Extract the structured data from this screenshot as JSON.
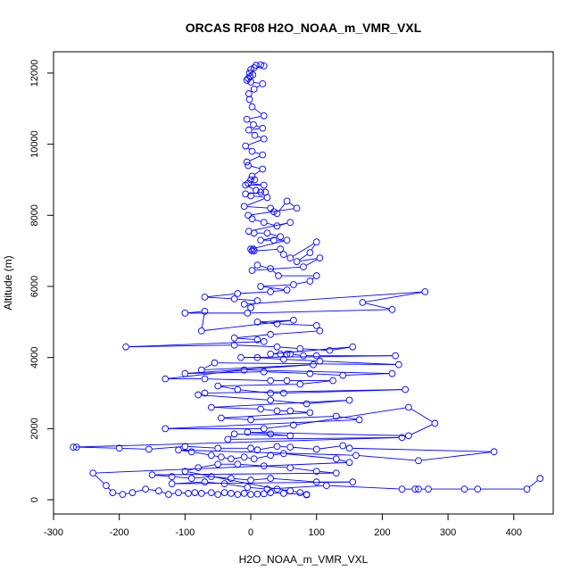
{
  "chart_data": {
    "type": "scatter",
    "title": "ORCAS RF08 H2O_NOAA_m_VMR_VXL",
    "xlabel": "H2O_NOAA_m_VMR_VXL",
    "ylabel": "Altitude (m)",
    "xlim": [
      -300,
      460
    ],
    "ylim": [
      -400,
      12600
    ],
    "xticks": [
      -300,
      -200,
      -100,
      0,
      100,
      200,
      300,
      400
    ],
    "yticks": [
      0,
      2000,
      4000,
      6000,
      8000,
      10000,
      12000
    ],
    "grid": false,
    "legend": "none",
    "marker": "open-circle",
    "connected": true,
    "color": "#0000ff",
    "series": [
      {
        "points": [
          [
            8,
            12220
          ],
          [
            15,
            12230
          ],
          [
            20,
            12200
          ],
          [
            5,
            12150
          ],
          [
            0,
            12100
          ],
          [
            -2,
            12000
          ],
          [
            3,
            11950
          ],
          [
            -1,
            11900
          ],
          [
            -4,
            11850
          ],
          [
            -6,
            11800
          ],
          [
            0,
            11750
          ],
          [
            18,
            11700
          ],
          [
            5,
            11550
          ],
          [
            -3,
            11420
          ],
          [
            -2,
            11260
          ],
          [
            2,
            11050
          ],
          [
            20,
            10800
          ],
          [
            -6,
            10700
          ],
          [
            4,
            10550
          ],
          [
            18,
            10450
          ],
          [
            -3,
            10400
          ],
          [
            6,
            10250
          ],
          [
            20,
            10150
          ],
          [
            -8,
            9950
          ],
          [
            2,
            9800
          ],
          [
            18,
            9700
          ],
          [
            -6,
            9500
          ],
          [
            -4,
            9400
          ],
          [
            18,
            9300
          ],
          [
            2,
            9100
          ],
          [
            0,
            9000
          ],
          [
            6,
            9000
          ],
          [
            -4,
            8900
          ],
          [
            20,
            8850
          ],
          [
            -8,
            8850
          ],
          [
            8,
            8700
          ],
          [
            15,
            8650
          ],
          [
            22,
            8650
          ],
          [
            -8,
            8600
          ],
          [
            0,
            8550
          ],
          [
            25,
            8500
          ],
          [
            -10,
            8250
          ],
          [
            30,
            8200
          ],
          [
            35,
            8100
          ],
          [
            40,
            8050
          ],
          [
            55,
            8400
          ],
          [
            70,
            8200
          ],
          [
            -4,
            8000
          ],
          [
            2,
            7900
          ],
          [
            20,
            7800
          ],
          [
            40,
            7700
          ],
          [
            60,
            7800
          ],
          [
            -3,
            7550
          ],
          [
            5,
            7500
          ],
          [
            25,
            7500
          ],
          [
            45,
            7400
          ],
          [
            15,
            7300
          ],
          [
            35,
            7300
          ],
          [
            55,
            7300
          ],
          [
            0,
            7050
          ],
          [
            2,
            7000
          ],
          [
            4,
            7050
          ],
          [
            5,
            7000
          ],
          [
            45,
            7050
          ],
          [
            50,
            6900
          ],
          [
            60,
            6800
          ],
          [
            100,
            7250
          ],
          [
            90,
            6950
          ],
          [
            70,
            6700
          ],
          [
            105,
            6800
          ],
          [
            80,
            6550
          ],
          [
            2,
            6450
          ],
          [
            10,
            6600
          ],
          [
            30,
            6500
          ],
          [
            42,
            6300
          ],
          [
            100,
            6300
          ],
          [
            90,
            6150
          ],
          [
            65,
            6050
          ],
          [
            15,
            6000
          ],
          [
            55,
            5900
          ],
          [
            30,
            5850
          ],
          [
            -20,
            5800
          ],
          [
            -70,
            5700
          ],
          [
            -25,
            5650
          ],
          [
            10,
            5600
          ],
          [
            0,
            5400
          ],
          [
            -10,
            5500
          ],
          [
            265,
            5850
          ],
          [
            170,
            5550
          ],
          [
            215,
            5350
          ],
          [
            -5,
            5250
          ],
          [
            -100,
            5250
          ],
          [
            -70,
            5300
          ],
          [
            -75,
            4750
          ],
          [
            65,
            5050
          ],
          [
            10,
            5000
          ],
          [
            40,
            4950
          ],
          [
            100,
            4900
          ],
          [
            105,
            4750
          ],
          [
            30,
            4650
          ],
          [
            -25,
            4550
          ],
          [
            10,
            4500
          ],
          [
            20,
            4450
          ],
          [
            -190,
            4300
          ],
          [
            -25,
            4350
          ],
          [
            40,
            4300
          ],
          [
            75,
            4250
          ],
          [
            120,
            4200
          ],
          [
            155,
            4300
          ],
          [
            30,
            4100
          ],
          [
            45,
            4100
          ],
          [
            55,
            4100
          ],
          [
            60,
            4100
          ],
          [
            80,
            4050
          ],
          [
            100,
            4050
          ],
          [
            220,
            4050
          ],
          [
            -15,
            4000
          ],
          [
            10,
            4000
          ],
          [
            50,
            3950
          ],
          [
            105,
            3900
          ],
          [
            225,
            3800
          ],
          [
            -55,
            3850
          ],
          [
            -75,
            3650
          ],
          [
            95,
            3800
          ],
          [
            -100,
            3550
          ],
          [
            20,
            3600
          ],
          [
            90,
            3550
          ],
          [
            140,
            3500
          ],
          [
            215,
            3550
          ],
          [
            -10,
            3650
          ],
          [
            -130,
            3400
          ],
          [
            -70,
            3400
          ],
          [
            30,
            3350
          ],
          [
            55,
            3350
          ],
          [
            125,
            3350
          ],
          [
            75,
            3250
          ],
          [
            -50,
            3200
          ],
          [
            -20,
            3100
          ],
          [
            30,
            3000
          ],
          [
            50,
            3000
          ],
          [
            235,
            3100
          ],
          [
            -70,
            3000
          ],
          [
            -80,
            2950
          ],
          [
            30,
            2800
          ],
          [
            85,
            2700
          ],
          [
            150,
            2800
          ],
          [
            -60,
            2600
          ],
          [
            15,
            2550
          ],
          [
            40,
            2500
          ],
          [
            60,
            2500
          ],
          [
            90,
            2450
          ],
          [
            -45,
            2300
          ],
          [
            0,
            2250
          ],
          [
            130,
            2350
          ],
          [
            165,
            2250
          ],
          [
            -130,
            2000
          ],
          [
            20,
            2000
          ],
          [
            65,
            2100
          ],
          [
            240,
            2600
          ],
          [
            280,
            2150
          ],
          [
            240,
            1800
          ],
          [
            -5,
            1900
          ],
          [
            30,
            1850
          ],
          [
            60,
            1800
          ],
          [
            -25,
            1850
          ],
          [
            -35,
            1700
          ],
          [
            230,
            1750
          ],
          [
            -270,
            1480
          ],
          [
            -265,
            1480
          ],
          [
            -200,
            1450
          ],
          [
            -155,
            1420
          ],
          [
            -100,
            1500
          ],
          [
            -50,
            1450
          ],
          [
            0,
            1450
          ],
          [
            10,
            1400
          ],
          [
            40,
            1500
          ],
          [
            60,
            1480
          ],
          [
            100,
            1420
          ],
          [
            140,
            1520
          ],
          [
            150,
            1450
          ],
          [
            370,
            1350
          ],
          [
            255,
            1100
          ],
          [
            160,
            1250
          ],
          [
            -110,
            1400
          ],
          [
            -90,
            1350
          ],
          [
            -60,
            1250
          ],
          [
            -45,
            1200
          ],
          [
            -30,
            1150
          ],
          [
            -10,
            1200
          ],
          [
            5,
            1150
          ],
          [
            30,
            1250
          ],
          [
            50,
            1300
          ],
          [
            130,
            1150
          ],
          [
            150,
            1050
          ],
          [
            -240,
            750
          ],
          [
            -220,
            400
          ],
          [
            -210,
            200
          ],
          [
            -195,
            150
          ],
          [
            -180,
            200
          ],
          [
            -160,
            300
          ],
          [
            -140,
            250
          ],
          [
            -125,
            150
          ],
          [
            -110,
            200
          ],
          [
            -95,
            180
          ],
          [
            -85,
            200
          ],
          [
            -75,
            180
          ],
          [
            -60,
            200
          ],
          [
            -50,
            150
          ],
          [
            -40,
            200
          ],
          [
            -30,
            180
          ],
          [
            -20,
            150
          ],
          [
            -10,
            180
          ],
          [
            0,
            150
          ],
          [
            10,
            160
          ],
          [
            20,
            170
          ],
          [
            30,
            200
          ],
          [
            50,
            180
          ],
          [
            85,
            150
          ],
          [
            85,
            140
          ],
          [
            75,
            200
          ],
          [
            60,
            250
          ],
          [
            40,
            300
          ],
          [
            -100,
            800
          ],
          [
            -80,
            900
          ],
          [
            -50,
            1000
          ],
          [
            -20,
            1000
          ],
          [
            20,
            950
          ],
          [
            60,
            900
          ],
          [
            100,
            800
          ],
          [
            130,
            750
          ],
          [
            -150,
            700
          ],
          [
            -120,
            650
          ],
          [
            -90,
            600
          ],
          [
            -60,
            650
          ],
          [
            -30,
            600
          ],
          [
            0,
            550
          ],
          [
            30,
            600
          ],
          [
            100,
            500
          ],
          [
            155,
            500
          ],
          [
            -120,
            450
          ],
          [
            -70,
            500
          ],
          [
            -40,
            450
          ],
          [
            -5,
            350
          ],
          [
            25,
            300
          ],
          [
            115,
            400
          ],
          [
            230,
            300
          ],
          [
            250,
            300
          ],
          [
            255,
            300
          ],
          [
            270,
            300
          ],
          [
            325,
            300
          ],
          [
            345,
            300
          ],
          [
            420,
            300
          ],
          [
            440,
            600
          ]
        ]
      }
    ]
  }
}
